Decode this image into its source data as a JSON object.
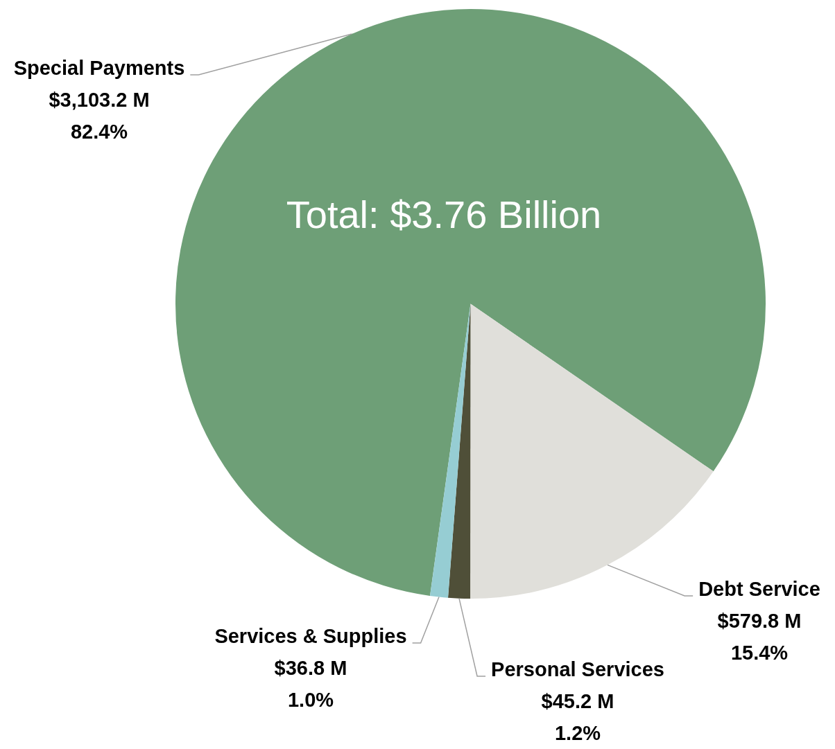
{
  "chart_data": {
    "type": "pie",
    "categories": [
      "Special Payments",
      "Debt Service",
      "Personal Services",
      "Services & Supplies"
    ],
    "values": [
      3103.2,
      579.8,
      45.2,
      36.8
    ],
    "colors": [
      "#6e9f77",
      "#e0dfda",
      "#4f4f38",
      "#96cdd3"
    ],
    "value_labels": [
      "$3,103.2 M\n82.4%",
      "$579.8 M\n15.4%",
      "$45.2 M\n1.2%",
      "$36.8 M\n1.0%"
    ],
    "annotations": [
      "Total: $3.76 Billion"
    ],
    "legend": false
  }
}
